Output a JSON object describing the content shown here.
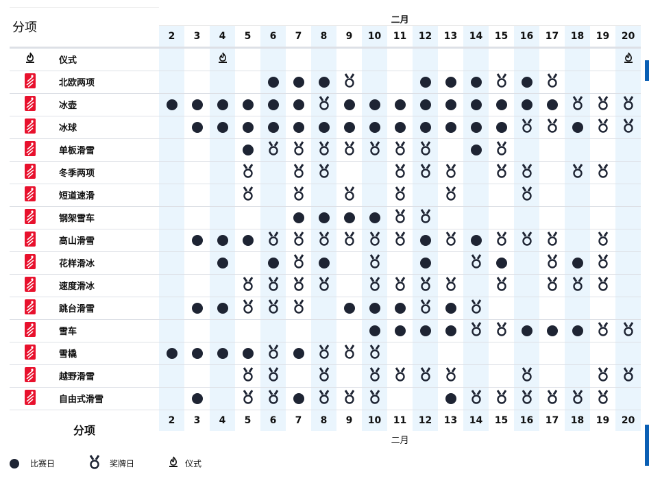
{
  "header": {
    "title": "分项",
    "month": "二月",
    "days": [
      "2",
      "3",
      "4",
      "5",
      "6",
      "7",
      "8",
      "9",
      "10",
      "11",
      "12",
      "13",
      "14",
      "15",
      "16",
      "17",
      "18",
      "19",
      "20"
    ]
  },
  "footer": {
    "title": "分项",
    "month": "二月"
  },
  "shaded_days": [
    "2",
    "4",
    "6",
    "8",
    "10",
    "12",
    "14",
    "16",
    "18",
    "20"
  ],
  "legend": {
    "competition": "比赛日",
    "medal": "奖牌日",
    "ceremony": "仪式"
  },
  "colors": {
    "accent_red": "#e8112d",
    "dot": "#1e2433",
    "shade": "#eaf5fd"
  },
  "symbols_key": {
    "d": "competition",
    "m": "medal",
    "c": "ceremony",
    ".": "none"
  },
  "rows": [
    {
      "name": "仪式",
      "icon": "ceremony-flame",
      "schedule": "..c...............c"
    },
    {
      "name": "北欧两项",
      "icon": "nordic-combined",
      "schedule": "....dddm..dddmdm..."
    },
    {
      "name": "冰壶",
      "icon": "curling",
      "schedule": "ddddddmdddddddddmmm"
    },
    {
      "name": "冰球",
      "icon": "ice-hockey",
      "schedule": ".dddddddddddddmmdmm"
    },
    {
      "name": "单板滑雪",
      "icon": "snowboard",
      "schedule": "...dmmmmmmm.dm....."
    },
    {
      "name": "冬季两项",
      "icon": "biathlon",
      "schedule": "...m.mm..mmm.mm.mm."
    },
    {
      "name": "短道速滑",
      "icon": "short-track",
      "schedule": "...m.m.m.m.m..m...."
    },
    {
      "name": "钢架雪车",
      "icon": "skeleton",
      "schedule": ".....ddddmm........"
    },
    {
      "name": "高山滑雪",
      "icon": "alpine-skiing",
      "schedule": ".dddmmmmmmdmdmmm.m."
    },
    {
      "name": "花样滑冰",
      "icon": "figure-skating",
      "schedule": "..d.dmd.m.d.md.mdm."
    },
    {
      "name": "速度滑冰",
      "icon": "speed-skating",
      "schedule": "...mmmm.mmmm.m.mmm."
    },
    {
      "name": "跳台滑雪",
      "icon": "ski-jumping",
      "schedule": ".ddmmm.dddmdm......"
    },
    {
      "name": "雪车",
      "icon": "bobsleigh",
      "schedule": "........ddddmmdddmm"
    },
    {
      "name": "雪橇",
      "icon": "luge",
      "schedule": "ddddmdmmm.........."
    },
    {
      "name": "越野滑雪",
      "icon": "cross-country",
      "schedule": "...mm.m.mmmm..m..mm"
    },
    {
      "name": "自由式滑雪",
      "icon": "freestyle-skiing",
      "schedule": ".d.mmdmmm..dmmmmmm."
    }
  ]
}
